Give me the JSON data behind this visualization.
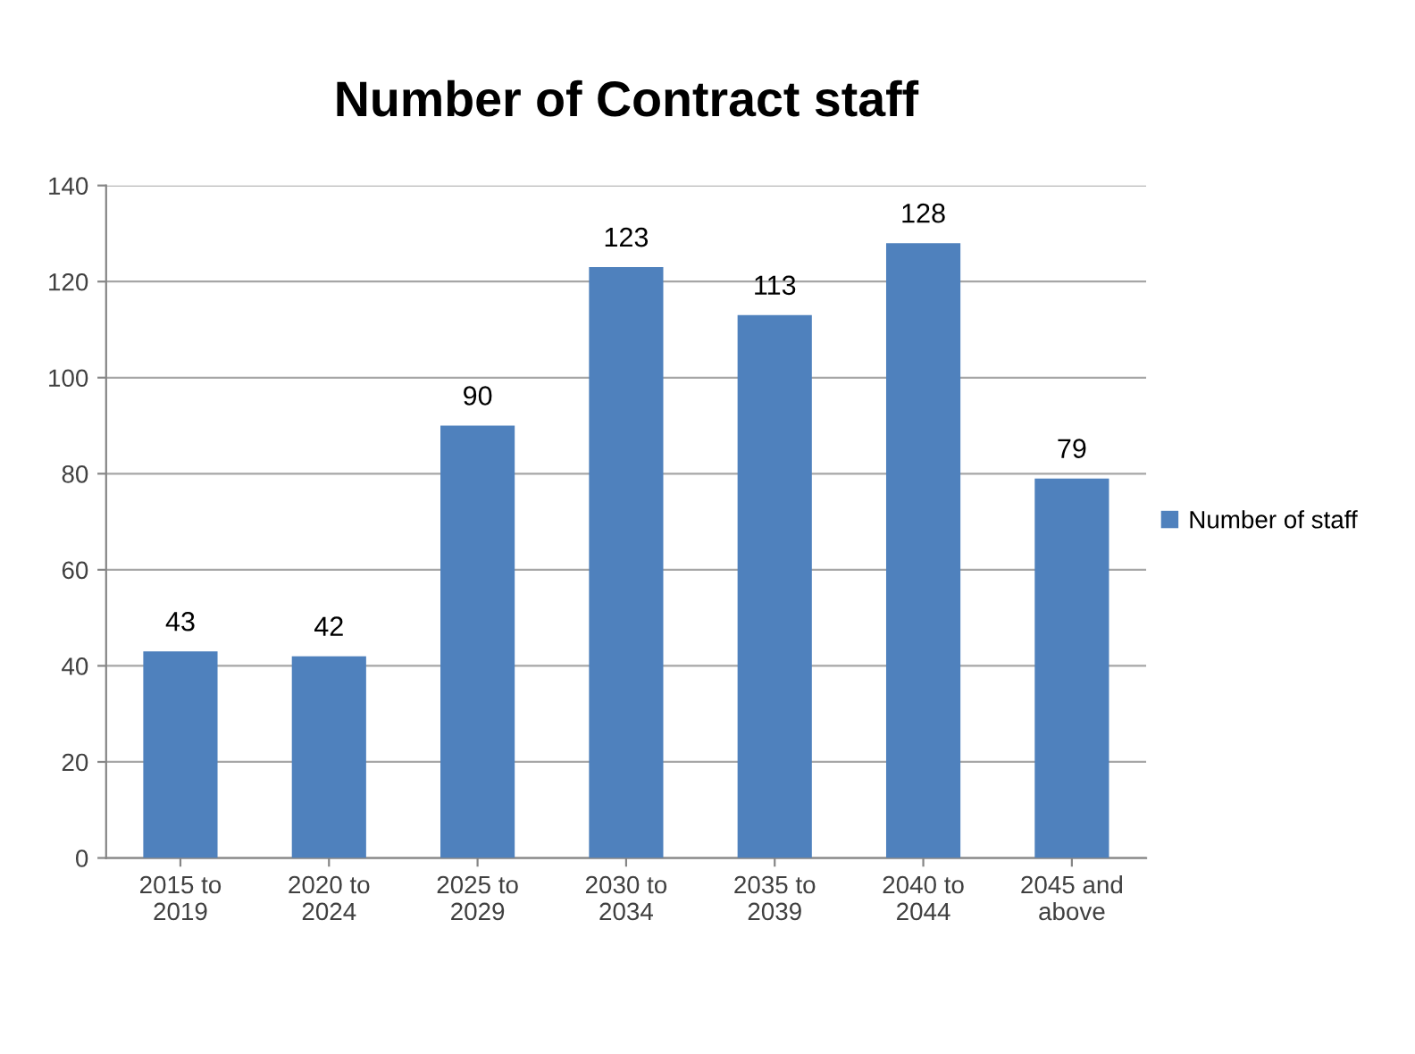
{
  "chart_data": {
    "type": "bar",
    "title": "Number of Contract staff",
    "categories": [
      "2015 to\n2019",
      "2020 to\n2024",
      "2025 to\n2029",
      "2030 to\n2034",
      "2035 to\n2039",
      "2040 to\n2044",
      "2045 and\nabove"
    ],
    "series": [
      {
        "name": "Number of staff",
        "color": "#4f81bd",
        "values": [
          43,
          42,
          90,
          123,
          113,
          128,
          79
        ]
      }
    ],
    "ylim": [
      0,
      140
    ],
    "yticks": [
      0,
      20,
      40,
      60,
      80,
      100,
      120,
      140
    ],
    "grid": "y",
    "legend": "right",
    "data_labels": true
  }
}
